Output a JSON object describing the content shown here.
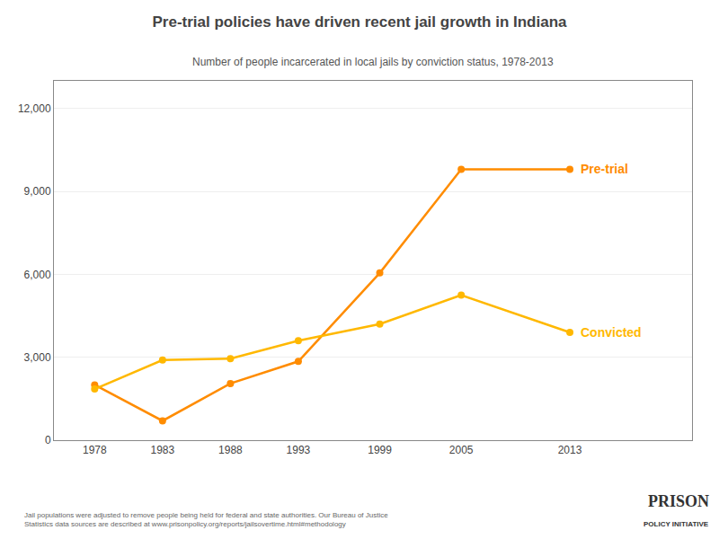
{
  "chart_data": {
    "type": "line",
    "title": "Pre-trial policies have driven recent jail growth in Indiana",
    "subtitle": "Number of people incarcerated in local jails by conviction status, 1978-2013",
    "x": [
      1978,
      1983,
      1988,
      1993,
      1999,
      2005,
      2013
    ],
    "series": [
      {
        "name": "Pre-trial",
        "color": "#FF8C00",
        "marker": "circle",
        "values": [
          2000,
          700,
          2050,
          2850,
          6050,
          9800,
          9800
        ]
      },
      {
        "name": "Convicted",
        "color": "#FFB800",
        "marker": "circle",
        "values": [
          1850,
          2900,
          2950,
          3600,
          4200,
          5250,
          3900
        ]
      }
    ],
    "xlim": [
      1975,
      2022
    ],
    "xticks": [
      1978,
      1983,
      1988,
      1993,
      1999,
      2005,
      2013
    ],
    "ylim": [
      0,
      13000
    ],
    "yticks": [
      0,
      {
        "value": 3000,
        "label": "3,000"
      },
      {
        "value": 6000,
        "label": "6,000"
      },
      {
        "value": 9000,
        "label": "9,000"
      },
      {
        "value": 12000,
        "label": "12,000"
      }
    ],
    "grid": true,
    "annotations": [
      "Jail populations were adjusted to remove people being held for federal and state authorities. Our Bureau of Justice\nStatistics data sources are described at www.prisonpolicy.org/reports/jailsovertime.html#methodology",
      "PRISON",
      "POLICY INITIATIVE"
    ]
  }
}
